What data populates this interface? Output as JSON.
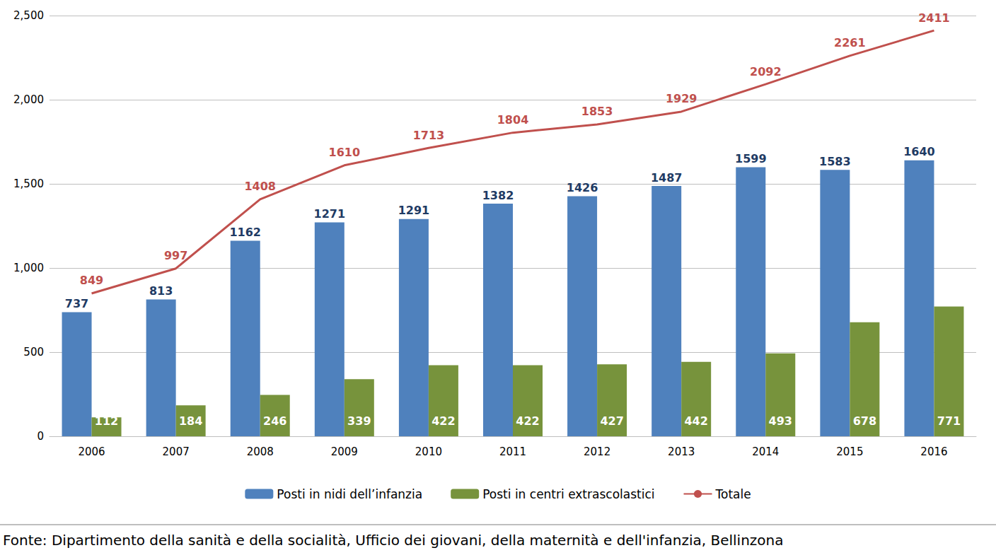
{
  "chart_data": {
    "type": "bar",
    "categories": [
      "2006",
      "2007",
      "2008",
      "2009",
      "2010",
      "2011",
      "2012",
      "2013",
      "2014",
      "2015",
      "2016"
    ],
    "series": [
      {
        "name": "Posti in nidi dell’infanzia",
        "type": "bar",
        "color": "#4f81bd",
        "values": [
          737,
          813,
          1162,
          1271,
          1291,
          1382,
          1426,
          1487,
          1599,
          1583,
          1640
        ]
      },
      {
        "name": "Posti in centri extrascolastici",
        "type": "bar",
        "color": "#77933c",
        "values": [
          112,
          184,
          246,
          339,
          422,
          422,
          427,
          442,
          493,
          678,
          771
        ]
      },
      {
        "name": "Totale",
        "type": "line",
        "color": "#c0504d",
        "values": [
          849,
          997,
          1408,
          1610,
          1713,
          1804,
          1853,
          1929,
          2092,
          2261,
          2411
        ]
      }
    ],
    "ylim": [
      0,
      2500
    ],
    "yticks": [
      0,
      500,
      1000,
      1500,
      2000,
      2500
    ],
    "grid": true,
    "legend": "bottom",
    "data_labels": true,
    "annotations": [
      "Fonte: Dipartimento della sanità e della socialità, Ufficio dei giovani, della maternità e dell'infanzia, Bellinzona"
    ]
  }
}
